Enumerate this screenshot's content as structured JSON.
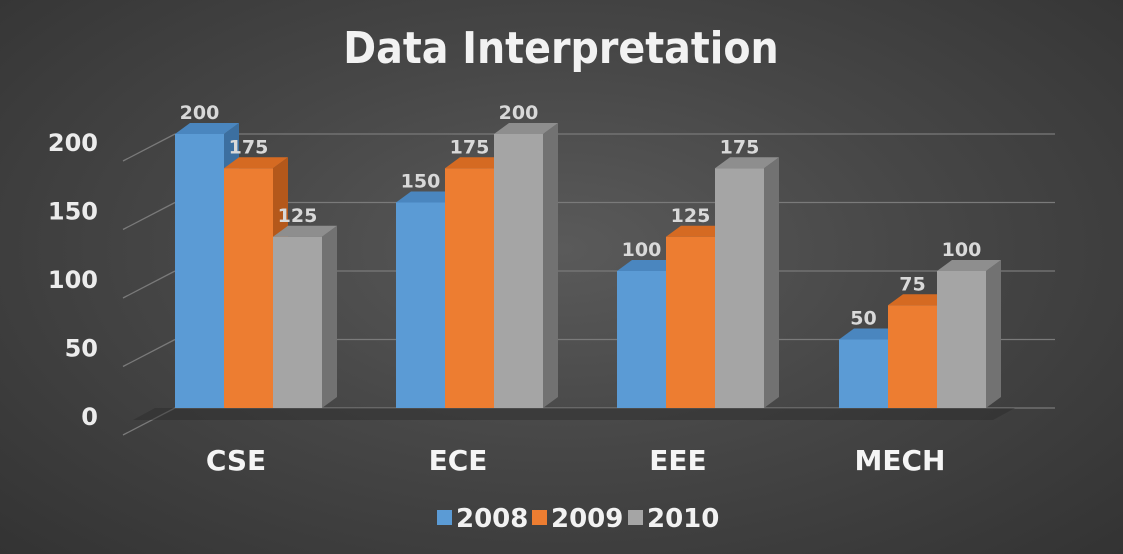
{
  "chart_data": {
    "type": "bar",
    "title": "Data Interpretation",
    "categories": [
      "CSE",
      "ECE",
      "EEE",
      "MECH"
    ],
    "series": [
      {
        "name": "2008",
        "values": [
          200,
          150,
          100,
          50
        ]
      },
      {
        "name": "2009",
        "values": [
          175,
          175,
          125,
          75
        ]
      },
      {
        "name": "2010",
        "values": [
          125,
          200,
          175,
          100
        ]
      }
    ],
    "ylim": [
      0,
      200
    ],
    "yticks": [
      0,
      50,
      100,
      150,
      200
    ],
    "grid": true,
    "legend_position": "bottom",
    "colors": {
      "2008": {
        "front": "#5b9bd5",
        "top": "#4a86bf",
        "side": "#3c6fa0"
      },
      "2009": {
        "front": "#ed7d31",
        "top": "#d56a22",
        "side": "#b4581b"
      },
      "2010": {
        "front": "#a5a5a5",
        "top": "#8e8e8e",
        "side": "#727272"
      }
    }
  }
}
